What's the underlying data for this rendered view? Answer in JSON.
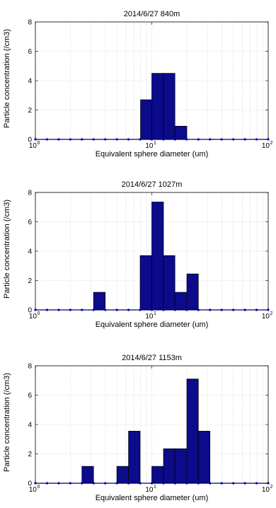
{
  "colors": {
    "bar_fill": "#0b0b8c",
    "bar_edge": "#000000",
    "baseline": "#0000ff",
    "marker": "#0000ff",
    "grid": "#b8b8b8"
  },
  "chart_data": [
    {
      "type": "bar",
      "title": "2014/6/27 840m",
      "xlabel": "Equivalent sphere diameter (um)",
      "ylabel": "Particle concentration (/cm3)",
      "xscale": "log",
      "xlim": [
        1,
        100
      ],
      "ylim": [
        0,
        8
      ],
      "yticks": [
        "0",
        "2",
        "4",
        "6",
        "8"
      ],
      "xticks": [
        {
          "base": "10",
          "exp": "0",
          "value": 1
        },
        {
          "base": "10",
          "exp": "1",
          "value": 10
        },
        {
          "base": "10",
          "exp": "2",
          "value": 100
        }
      ],
      "grid": true,
      "bars": [
        {
          "x0": 8.0,
          "x1": 10.0,
          "value": 2.7
        },
        {
          "x0": 10.0,
          "x1": 12.6,
          "value": 4.5
        },
        {
          "x0": 12.6,
          "x1": 15.8,
          "value": 4.5
        },
        {
          "x0": 15.8,
          "x1": 20.0,
          "value": 0.9
        }
      ]
    },
    {
      "type": "bar",
      "title": "2014/6/27 1027m",
      "xlabel": "Equivalent sphere diameter (um)",
      "ylabel": "Particle concentration (/cm3)",
      "xscale": "log",
      "xlim": [
        1,
        100
      ],
      "ylim": [
        0,
        8
      ],
      "yticks": [
        "0",
        "2",
        "4",
        "6",
        "8"
      ],
      "xticks": [
        {
          "base": "10",
          "exp": "0",
          "value": 1
        },
        {
          "base": "10",
          "exp": "1",
          "value": 10
        },
        {
          "base": "10",
          "exp": "2",
          "value": 100
        }
      ],
      "grid": true,
      "bars": [
        {
          "x0": 3.16,
          "x1": 3.98,
          "value": 1.2
        },
        {
          "x0": 7.94,
          "x1": 10.0,
          "value": 3.7
        },
        {
          "x0": 10.0,
          "x1": 12.6,
          "value": 7.35
        },
        {
          "x0": 12.6,
          "x1": 15.8,
          "value": 3.7
        },
        {
          "x0": 15.8,
          "x1": 20.0,
          "value": 1.2
        },
        {
          "x0": 20.0,
          "x1": 25.1,
          "value": 2.45
        }
      ]
    },
    {
      "type": "bar",
      "title": "2014/6/27 1153m",
      "xlabel": "Equivalent sphere diameter (um)",
      "ylabel": "Particle concentration (/cm3)",
      "xscale": "log",
      "xlim": [
        1,
        100
      ],
      "ylim": [
        0,
        8
      ],
      "yticks": [
        "0",
        "2",
        "4",
        "6",
        "8"
      ],
      "xticks": [
        {
          "base": "10",
          "exp": "0",
          "value": 1
        },
        {
          "base": "10",
          "exp": "1",
          "value": 10
        },
        {
          "base": "10",
          "exp": "2",
          "value": 100
        }
      ],
      "grid": true,
      "bars": [
        {
          "x0": 2.51,
          "x1": 3.16,
          "value": 1.15
        },
        {
          "x0": 5.01,
          "x1": 6.31,
          "value": 1.15
        },
        {
          "x0": 6.31,
          "x1": 7.94,
          "value": 3.55
        },
        {
          "x0": 10.0,
          "x1": 12.6,
          "value": 1.15
        },
        {
          "x0": 12.6,
          "x1": 15.8,
          "value": 2.35
        },
        {
          "x0": 15.8,
          "x1": 20.0,
          "value": 2.35
        },
        {
          "x0": 20.0,
          "x1": 25.1,
          "value": 7.1
        },
        {
          "x0": 25.1,
          "x1": 31.6,
          "value": 3.55
        }
      ]
    }
  ]
}
